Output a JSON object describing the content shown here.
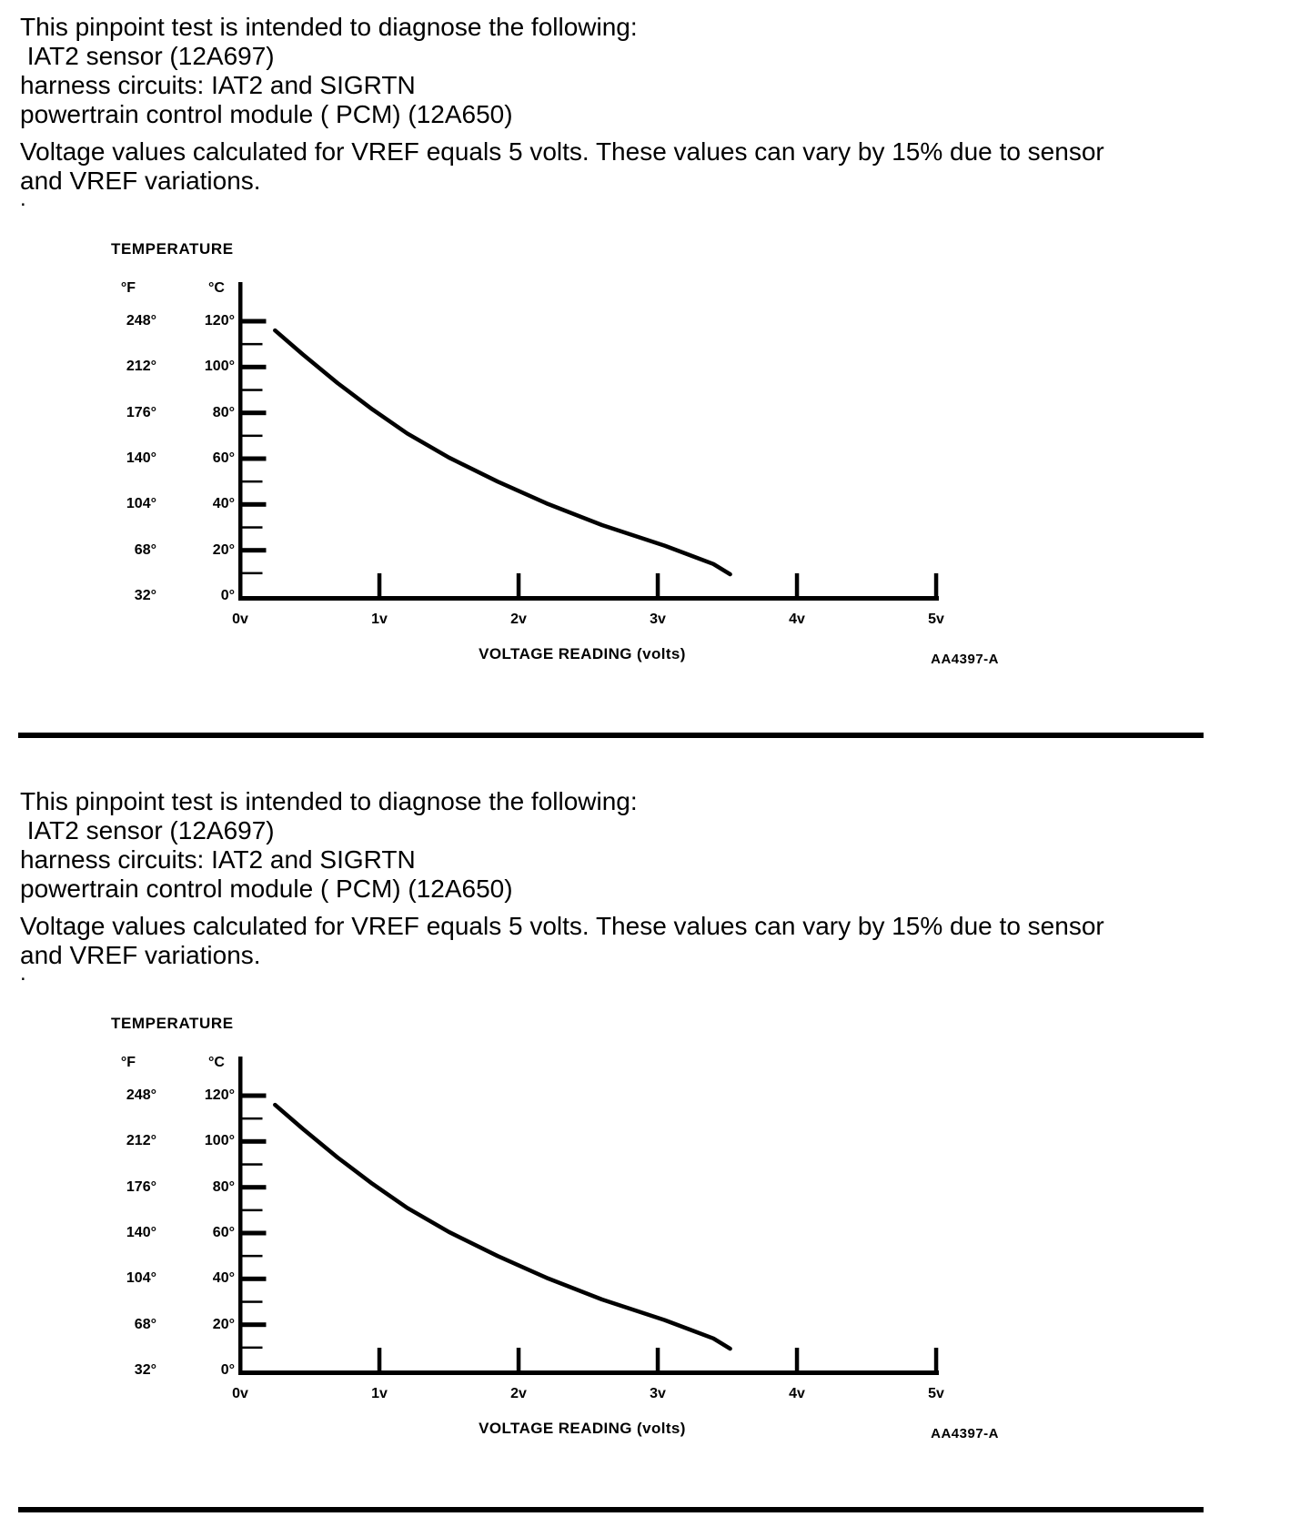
{
  "page": {
    "background": "#ffffff",
    "ink": "#000000"
  },
  "sections": [
    {
      "intro_lines": [
        "This pinpoint test is intended to diagnose the following:",
        " IAT2 sensor (12A697)",
        "harness circuits: IAT2 and SIGRTN",
        "powertrain control module ( PCM) (12A650)"
      ],
      "note_lines": [
        "Voltage values calculated for VREF equals 5 volts. These values can vary by 15% due to sensor",
        "and VREF variations."
      ],
      "stray_mark": "."
    },
    {
      "intro_lines": [
        "This pinpoint test is intended to diagnose the following:",
        " IAT2 sensor (12A697)",
        "harness circuits: IAT2 and SIGRTN",
        "powertrain control module ( PCM) (12A650)"
      ],
      "note_lines": [
        "Voltage values calculated for VREF equals 5 volts. These values can vary by 15% due to sensor",
        "and VREF variations."
      ],
      "stray_mark": "."
    }
  ],
  "chart_data": [
    {
      "type": "line",
      "title": "TEMPERATURE",
      "xlabel": "VOLTAGE READING (volts)",
      "ylabel": "TEMPERATURE (°F / °C)",
      "figure_code": "AA4397-A",
      "grid": false,
      "legend": false,
      "x_axis": {
        "label": "VOLTAGE READING (volts)",
        "ticks": [
          "0v",
          "1v",
          "2v",
          "3v",
          "4v",
          "5v"
        ],
        "tick_values": [
          0,
          1,
          2,
          3,
          4,
          5
        ],
        "range": [
          0,
          5
        ]
      },
      "y_axis": {
        "unit_labels": [
          "°F",
          "°C"
        ],
        "ticks_f": [
          "248°",
          "212°",
          "176°",
          "140°",
          "104°",
          "68°",
          "32°"
        ],
        "ticks_c": [
          "120°",
          "100°",
          "80°",
          "60°",
          "40°",
          "20°",
          "0°"
        ],
        "ticks_c_values": [
          120,
          100,
          80,
          60,
          40,
          20,
          0
        ],
        "minor_ticks_c_values": [
          110,
          90,
          70,
          50,
          30,
          10
        ],
        "range_c": [
          0,
          120
        ]
      },
      "curve": {
        "name": "IAT2 sensor temperature vs voltage reading",
        "points_v_c": [
          [
            0.25,
            116
          ],
          [
            0.45,
            105.5
          ],
          [
            0.7,
            93
          ],
          [
            0.95,
            81.5
          ],
          [
            1.2,
            71
          ],
          [
            1.5,
            60.5
          ],
          [
            1.85,
            50
          ],
          [
            2.2,
            40.5
          ],
          [
            2.6,
            31
          ],
          [
            3.05,
            22
          ],
          [
            3.4,
            14
          ],
          [
            3.52,
            9.5
          ]
        ]
      }
    },
    {
      "type": "line",
      "title": "TEMPERATURE",
      "xlabel": "VOLTAGE READING (volts)",
      "ylabel": "TEMPERATURE (°F / °C)",
      "figure_code": "AA4397-A",
      "grid": false,
      "legend": false,
      "x_axis": {
        "label": "VOLTAGE READING (volts)",
        "ticks": [
          "0v",
          "1v",
          "2v",
          "3v",
          "4v",
          "5v"
        ],
        "tick_values": [
          0,
          1,
          2,
          3,
          4,
          5
        ],
        "range": [
          0,
          5
        ]
      },
      "y_axis": {
        "unit_labels": [
          "°F",
          "°C"
        ],
        "ticks_f": [
          "248°",
          "212°",
          "176°",
          "140°",
          "104°",
          "68°",
          "32°"
        ],
        "ticks_c": [
          "120°",
          "100°",
          "80°",
          "60°",
          "40°",
          "20°",
          "0°"
        ],
        "ticks_c_values": [
          120,
          100,
          80,
          60,
          40,
          20,
          0
        ],
        "minor_ticks_c_values": [
          110,
          90,
          70,
          50,
          30,
          10
        ],
        "range_c": [
          0,
          120
        ]
      },
      "curve": {
        "name": "IAT2 sensor temperature vs voltage reading",
        "points_v_c": [
          [
            0.25,
            116
          ],
          [
            0.45,
            105.5
          ],
          [
            0.7,
            93
          ],
          [
            0.95,
            81.5
          ],
          [
            1.2,
            71
          ],
          [
            1.5,
            60.5
          ],
          [
            1.85,
            50
          ],
          [
            2.2,
            40.5
          ],
          [
            2.6,
            31
          ],
          [
            3.05,
            22
          ],
          [
            3.4,
            14
          ],
          [
            3.52,
            9.5
          ]
        ]
      }
    }
  ]
}
